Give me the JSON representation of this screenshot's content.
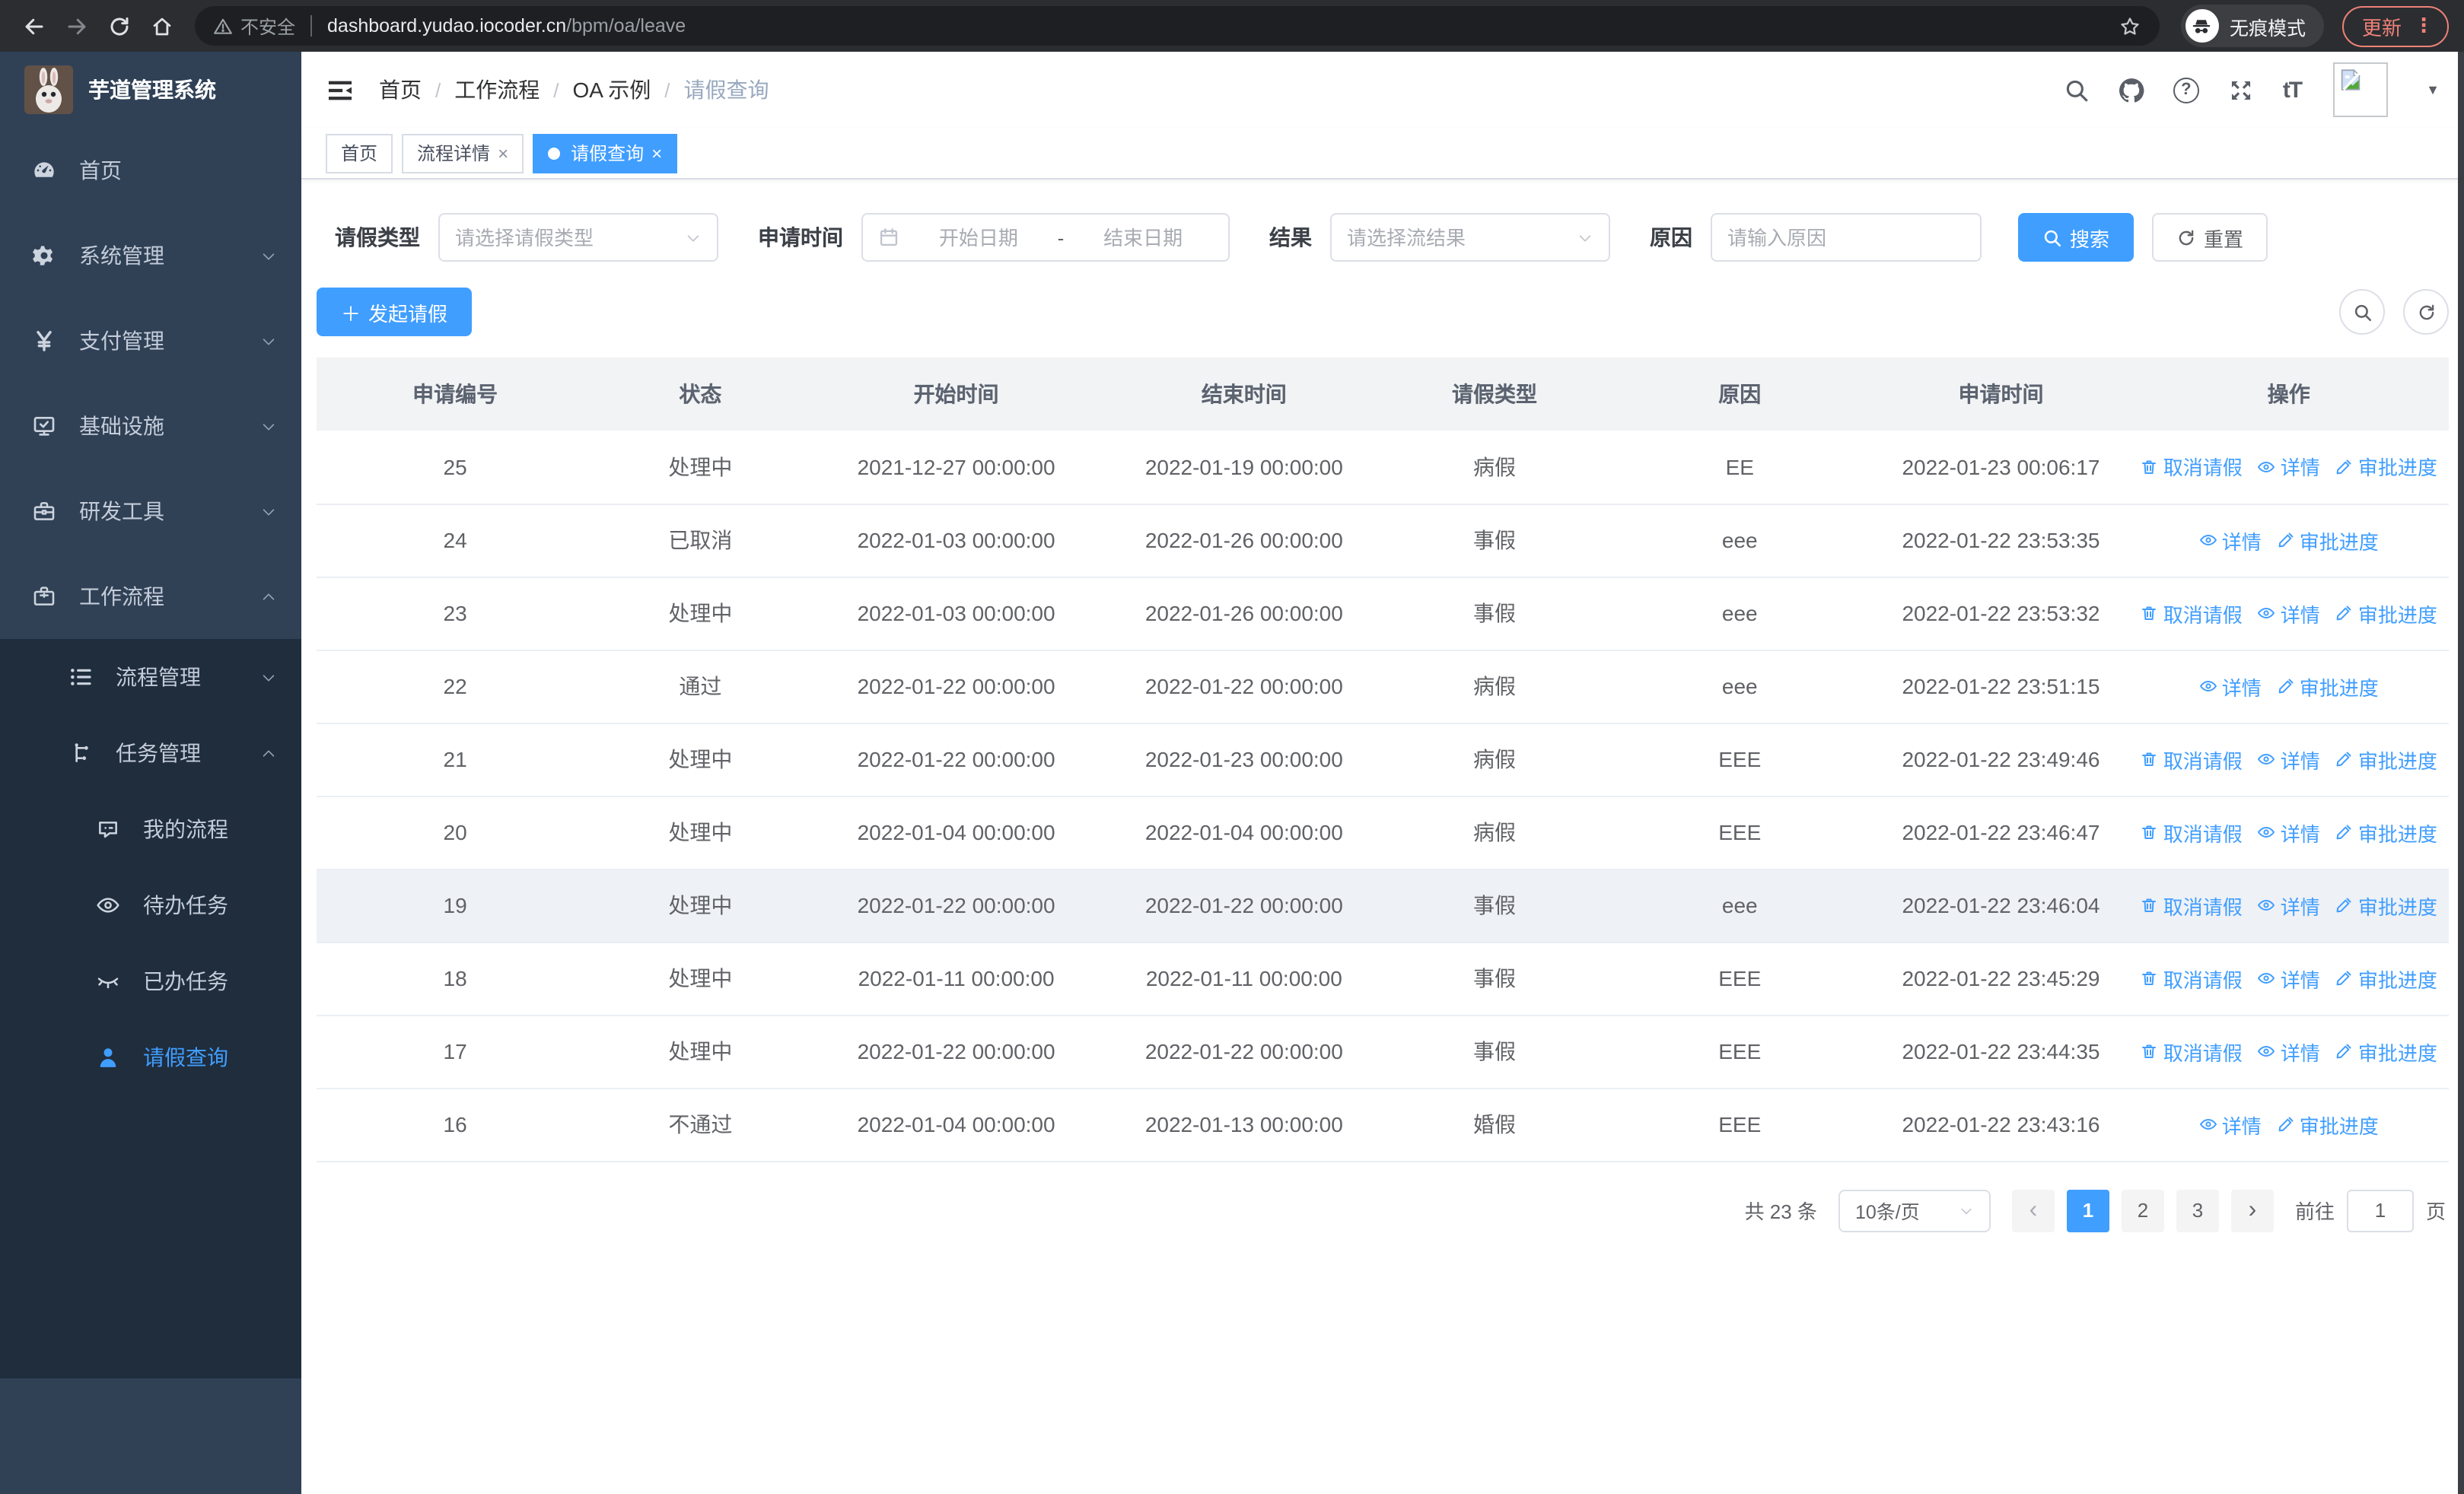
{
  "browser": {
    "security_label": "不安全",
    "url_host": "dashboard.yudao.iocoder.cn",
    "url_path": "/bpm/oa/leave",
    "incognito_label": "无痕模式",
    "update_label": "更新",
    "nav_icons": [
      "back-icon",
      "forward-icon",
      "reload-icon",
      "home-icon"
    ]
  },
  "sidebar": {
    "title": "芋道管理系统",
    "items": [
      {
        "key": "home",
        "label": "首页",
        "icon": "dashboard-icon",
        "expandable": false
      },
      {
        "key": "system",
        "label": "系统管理",
        "icon": "gear-icon",
        "expandable": true
      },
      {
        "key": "payment",
        "label": "支付管理",
        "icon": "yen-icon",
        "expandable": true
      },
      {
        "key": "infra",
        "label": "基础设施",
        "icon": "monitor-icon",
        "expandable": true
      },
      {
        "key": "devtools",
        "label": "研发工具",
        "icon": "toolbox-icon",
        "expandable": true
      },
      {
        "key": "workflow",
        "label": "工作流程",
        "icon": "briefcase-icon",
        "expandable": true,
        "expanded": true
      }
    ],
    "submenu": [
      {
        "key": "process-mgmt",
        "label": "流程管理",
        "icon": "list-icon",
        "level": 1,
        "expandable": true
      },
      {
        "key": "task-mgmt",
        "label": "任务管理",
        "icon": "flow-icon",
        "level": 1,
        "expandable": true,
        "expanded": true
      },
      {
        "key": "my-process",
        "label": "我的流程",
        "icon": "face-icon",
        "level": 2
      },
      {
        "key": "todo-task",
        "label": "待办任务",
        "icon": "eye-open-icon",
        "level": 2
      },
      {
        "key": "done-task",
        "label": "已办任务",
        "icon": "eye-closed-icon",
        "level": 2
      },
      {
        "key": "leave-query",
        "label": "请假查询",
        "icon": "user-icon",
        "level": 2,
        "active": true
      }
    ]
  },
  "header": {
    "breadcrumb": [
      "首页",
      "工作流程",
      "OA 示例",
      "请假查询"
    ],
    "icons": [
      "search-icon",
      "github-icon",
      "question-icon",
      "fullscreen-icon",
      "font-size-icon"
    ]
  },
  "tabs": [
    {
      "label": "首页",
      "closable": false,
      "active": false
    },
    {
      "label": "流程详情",
      "closable": true,
      "active": false
    },
    {
      "label": "请假查询",
      "closable": true,
      "active": true
    }
  ],
  "filters": {
    "leave_type_label": "请假类型",
    "leave_type_placeholder": "请选择请假类型",
    "apply_time_label": "申请时间",
    "start_placeholder": "开始日期",
    "range_separator": "-",
    "end_placeholder": "结束日期",
    "result_label": "结果",
    "result_placeholder": "请选择流结果",
    "reason_label": "原因",
    "reason_placeholder": "请输入原因",
    "search_label": "搜索",
    "reset_label": "重置"
  },
  "toolbar": {
    "create_label": "发起请假"
  },
  "table": {
    "columns": [
      "申请编号",
      "状态",
      "开始时间",
      "结束时间",
      "请假类型",
      "原因",
      "申请时间",
      "操作"
    ],
    "action_labels": {
      "cancel": "取消请假",
      "detail": "详情",
      "progress": "审批进度"
    },
    "rows": [
      {
        "id": "25",
        "status": "处理中",
        "start": "2021-12-27 00:00:00",
        "end": "2022-01-19 00:00:00",
        "type": "病假",
        "reason": "EE",
        "applied": "2022-01-23 00:06:17",
        "cancel": true,
        "highlight": false
      },
      {
        "id": "24",
        "status": "已取消",
        "start": "2022-01-03 00:00:00",
        "end": "2022-01-26 00:00:00",
        "type": "事假",
        "reason": "eee",
        "applied": "2022-01-22 23:53:35",
        "cancel": false,
        "highlight": false
      },
      {
        "id": "23",
        "status": "处理中",
        "start": "2022-01-03 00:00:00",
        "end": "2022-01-26 00:00:00",
        "type": "事假",
        "reason": "eee",
        "applied": "2022-01-22 23:53:32",
        "cancel": true,
        "highlight": false
      },
      {
        "id": "22",
        "status": "通过",
        "start": "2022-01-22 00:00:00",
        "end": "2022-01-22 00:00:00",
        "type": "病假",
        "reason": "eee",
        "applied": "2022-01-22 23:51:15",
        "cancel": false,
        "highlight": false
      },
      {
        "id": "21",
        "status": "处理中",
        "start": "2022-01-22 00:00:00",
        "end": "2022-01-23 00:00:00",
        "type": "病假",
        "reason": "EEE",
        "applied": "2022-01-22 23:49:46",
        "cancel": true,
        "highlight": false
      },
      {
        "id": "20",
        "status": "处理中",
        "start": "2022-01-04 00:00:00",
        "end": "2022-01-04 00:00:00",
        "type": "病假",
        "reason": "EEE",
        "applied": "2022-01-22 23:46:47",
        "cancel": true,
        "highlight": false
      },
      {
        "id": "19",
        "status": "处理中",
        "start": "2022-01-22 00:00:00",
        "end": "2022-01-22 00:00:00",
        "type": "事假",
        "reason": "eee",
        "applied": "2022-01-22 23:46:04",
        "cancel": true,
        "highlight": true
      },
      {
        "id": "18",
        "status": "处理中",
        "start": "2022-01-11 00:00:00",
        "end": "2022-01-11 00:00:00",
        "type": "事假",
        "reason": "EEE",
        "applied": "2022-01-22 23:45:29",
        "cancel": true,
        "highlight": false
      },
      {
        "id": "17",
        "status": "处理中",
        "start": "2022-01-22 00:00:00",
        "end": "2022-01-22 00:00:00",
        "type": "事假",
        "reason": "EEE",
        "applied": "2022-01-22 23:44:35",
        "cancel": true,
        "highlight": false
      },
      {
        "id": "16",
        "status": "不通过",
        "start": "2022-01-04 00:00:00",
        "end": "2022-01-13 00:00:00",
        "type": "婚假",
        "reason": "EEE",
        "applied": "2022-01-22 23:43:16",
        "cancel": false,
        "highlight": false
      }
    ]
  },
  "pagination": {
    "total_label": "共 23 条",
    "page_size": "10条/页",
    "pages": [
      "1",
      "2",
      "3"
    ],
    "current_page": "1",
    "goto_label": "前往",
    "goto_value": "1",
    "page_unit": "页"
  },
  "colors": {
    "accent": "#409eff",
    "sidebar_bg": "#304156",
    "submenu_bg": "#1f2d3d",
    "update_red": "#ee8277",
    "table_header_bg": "#f2f3f5"
  }
}
